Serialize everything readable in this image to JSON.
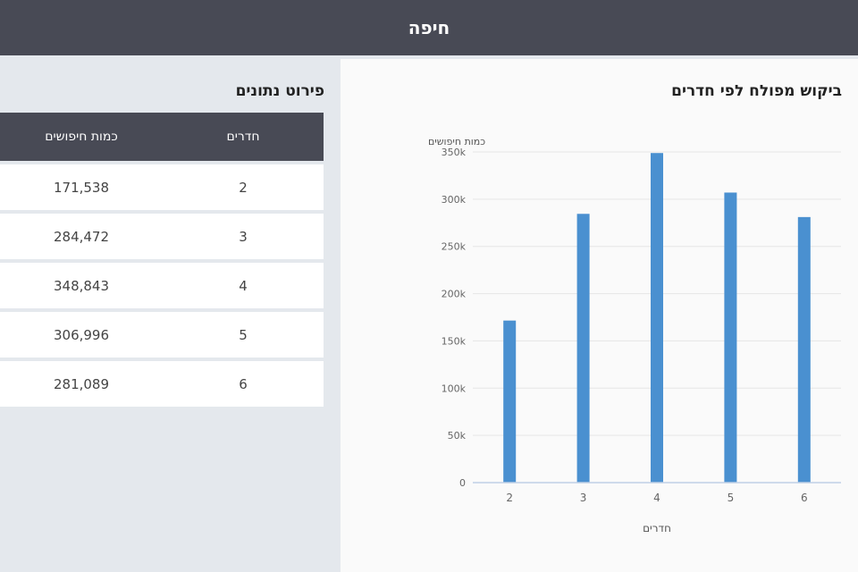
{
  "header": {
    "title": "חיפה"
  },
  "chart_section": {
    "title": "ביקוש מפולח לפי חדרים"
  },
  "table_section": {
    "title": "פירוט נתונים",
    "columns": [
      "חדרים",
      "כמות חיפושים"
    ],
    "rows": [
      {
        "rooms": "2",
        "searches": "171,538"
      },
      {
        "rooms": "3",
        "searches": "284,472"
      },
      {
        "rooms": "4",
        "searches": "348,843"
      },
      {
        "rooms": "5",
        "searches": "306,996"
      },
      {
        "rooms": "6",
        "searches": "281,089"
      }
    ]
  },
  "chart_data": {
    "type": "bar",
    "title": "ביקוש מפולח לפי חדרים",
    "xlabel": "חדרים",
    "ylabel": "כמות חיפושים",
    "categories": [
      "2",
      "3",
      "4",
      "5",
      "6"
    ],
    "values": [
      171538,
      284472,
      348843,
      306996,
      281089
    ],
    "ylim": [
      0,
      350000
    ],
    "yticks": [
      0,
      50000,
      100000,
      150000,
      200000,
      250000,
      300000,
      350000
    ],
    "ytick_labels": [
      "0",
      "50k",
      "100k",
      "150k",
      "200k",
      "250k",
      "300k",
      "350k"
    ],
    "bar_color": "#4a90d0",
    "grid": true,
    "legend": "none"
  }
}
